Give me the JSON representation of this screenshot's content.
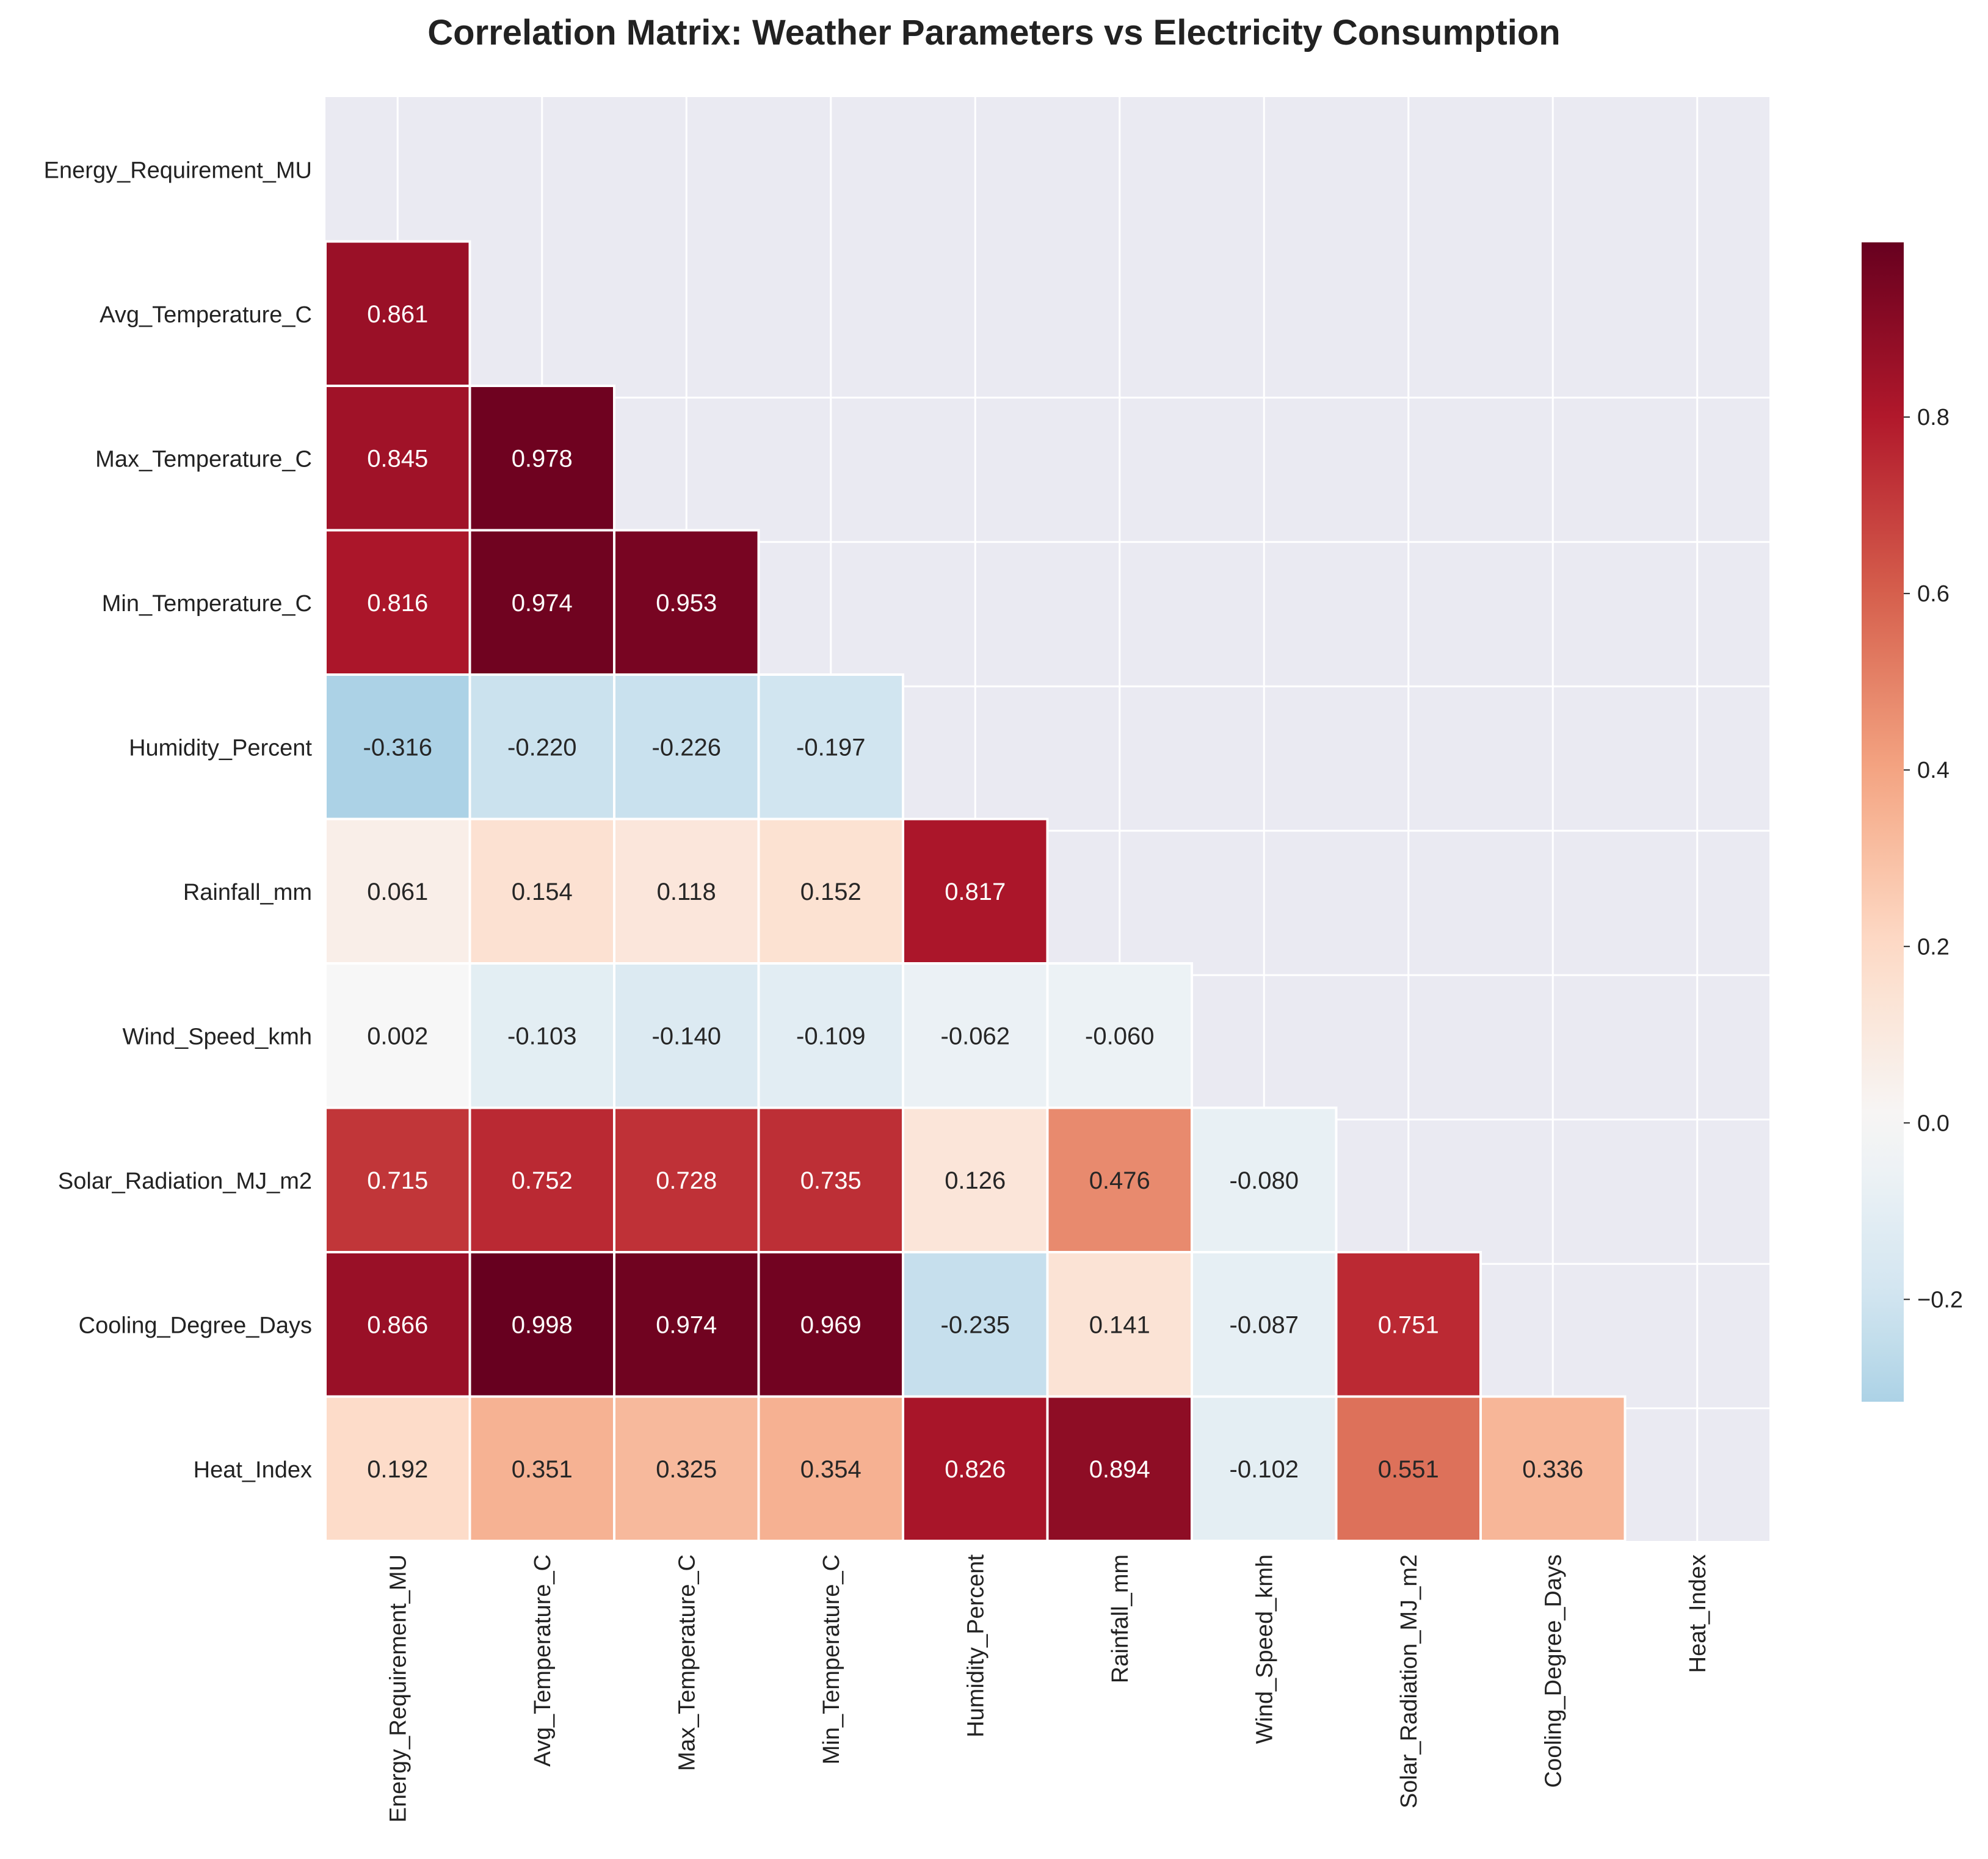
{
  "chart_data": {
    "type": "heatmap",
    "title": "Correlation Matrix: Weather Parameters vs Electricity Consumption",
    "variables": [
      "Energy_Requirement_MU",
      "Avg_Temperature_C",
      "Max_Temperature_C",
      "Min_Temperature_C",
      "Humidity_Percent",
      "Rainfall_mm",
      "Wind_Speed_kmh",
      "Solar_Radiation_MJ_m2",
      "Cooling_Degree_Days",
      "Heat_Index"
    ],
    "lower_triangle": [
      [],
      [
        "0.861"
      ],
      [
        "0.845",
        "0.978"
      ],
      [
        "0.816",
        "0.974",
        "0.953"
      ],
      [
        "-0.316",
        "-0.220",
        "-0.226",
        "-0.197"
      ],
      [
        "0.061",
        "0.154",
        "0.118",
        "0.152",
        "0.817"
      ],
      [
        "0.002",
        "-0.103",
        "-0.140",
        "-0.109",
        "-0.062",
        "-0.060"
      ],
      [
        "0.715",
        "0.752",
        "0.728",
        "0.735",
        "0.126",
        "0.476",
        "-0.080"
      ],
      [
        "0.866",
        "0.998",
        "0.974",
        "0.969",
        "-0.235",
        "0.141",
        "-0.087",
        "0.751"
      ],
      [
        "0.192",
        "0.351",
        "0.325",
        "0.354",
        "0.826",
        "0.894",
        "-0.102",
        "0.551",
        "0.336"
      ]
    ],
    "mask": "upper triangle including diagonal",
    "colormap": "RdBu_r",
    "vmin": -0.316,
    "vmax": 0.998,
    "colorbar_ticks": [
      "−0.2",
      "0.0",
      "0.2",
      "0.4",
      "0.6",
      "0.8"
    ],
    "colorbar_tick_values": [
      -0.2,
      0.0,
      0.2,
      0.4,
      0.6,
      0.8
    ],
    "grid": true,
    "colors": {
      "plot_background": "#eaeaf2",
      "grid_line": "#ffffff",
      "text_dark": "#262626",
      "text_light": "#ffffff"
    }
  }
}
